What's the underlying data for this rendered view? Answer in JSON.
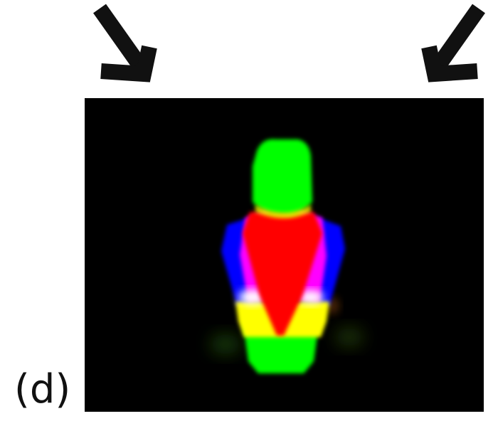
{
  "figure": {
    "panel_label": "(d)",
    "arrows": [
      {
        "name": "arrow-down-right",
        "icon": "arrow-down-right-icon",
        "color": "#111111"
      },
      {
        "name": "arrow-down-left",
        "icon": "arrow-down-left-icon",
        "color": "#111111"
      }
    ],
    "image": {
      "background": "#000000",
      "content": "blurred-colored-human-figure",
      "colors": {
        "head": "#00ff00",
        "torso": "#ff0000",
        "arms": "#0000ff",
        "magenta": "#ff00ff",
        "hips": "#ffff00",
        "legs": "#00ff00",
        "highlight": "#ffffff"
      }
    }
  }
}
